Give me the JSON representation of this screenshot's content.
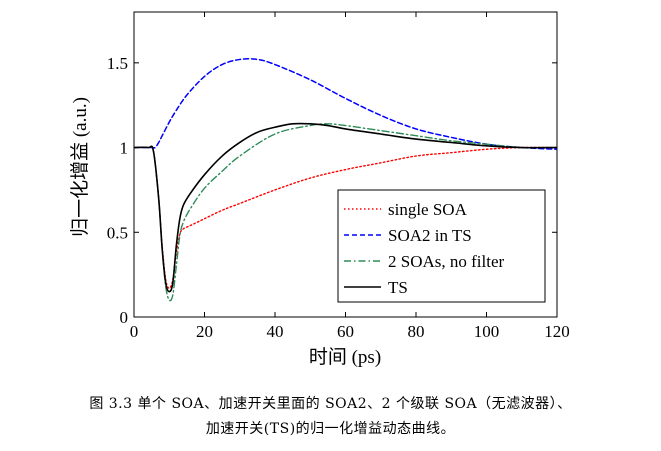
{
  "chart_data": {
    "type": "line",
    "xlabel": "时间 (ps)",
    "ylabel": "归一化增益 (a.u.)",
    "xlim": [
      0,
      120
    ],
    "ylim": [
      0,
      1.8
    ],
    "xticks": [
      "0",
      "20",
      "40",
      "60",
      "80",
      "100",
      "120"
    ],
    "yticks": [
      "0",
      "0.5",
      "1",
      "1.5"
    ],
    "grid": false,
    "legend_position": "bottom-right",
    "series": [
      {
        "name": "single SOA",
        "color": "#ff0000",
        "style": "dotted",
        "x": [
          0,
          4,
          5.5,
          7,
          8,
          9,
          10,
          11,
          12,
          13,
          14,
          16,
          20,
          25,
          30,
          40,
          50,
          60,
          70,
          80,
          90,
          100,
          110,
          120
        ],
        "y": [
          1.0,
          1.0,
          0.98,
          0.7,
          0.42,
          0.22,
          0.17,
          0.22,
          0.38,
          0.49,
          0.52,
          0.54,
          0.58,
          0.63,
          0.67,
          0.75,
          0.82,
          0.87,
          0.91,
          0.95,
          0.97,
          0.99,
          1.0,
          1.0
        ]
      },
      {
        "name": "SOA2 in TS",
        "color": "#0000ff",
        "style": "dashed",
        "x": [
          0,
          5,
          6,
          7,
          8,
          10,
          12,
          15,
          20,
          25,
          30,
          35,
          40,
          50,
          60,
          70,
          80,
          90,
          100,
          110,
          120
        ],
        "y": [
          1.0,
          1.0,
          1.0,
          1.03,
          1.07,
          1.15,
          1.22,
          1.31,
          1.42,
          1.49,
          1.52,
          1.52,
          1.49,
          1.4,
          1.29,
          1.19,
          1.11,
          1.06,
          1.02,
          1.0,
          0.99
        ]
      },
      {
        "name": "2 SOAs, no filter",
        "color": "#2e8b57",
        "style": "dashdot",
        "x": [
          0,
          4,
          5.5,
          7,
          8,
          9,
          10,
          11,
          12,
          13,
          14,
          16,
          20,
          25,
          30,
          40,
          50,
          55,
          60,
          70,
          80,
          90,
          100,
          110,
          120
        ],
        "y": [
          1.0,
          1.0,
          0.98,
          0.7,
          0.4,
          0.18,
          0.1,
          0.13,
          0.3,
          0.48,
          0.56,
          0.64,
          0.76,
          0.86,
          0.95,
          1.08,
          1.13,
          1.14,
          1.13,
          1.1,
          1.07,
          1.04,
          1.02,
          1.0,
          1.0
        ]
      },
      {
        "name": "TS",
        "color": "#000000",
        "style": "solid",
        "x": [
          0,
          4,
          5.5,
          7,
          8,
          9,
          10,
          11,
          12,
          13,
          14,
          16,
          20,
          25,
          30,
          35,
          40,
          45,
          50,
          55,
          60,
          70,
          80,
          90,
          100,
          110,
          120
        ],
        "y": [
          1.0,
          1.0,
          0.98,
          0.7,
          0.4,
          0.2,
          0.15,
          0.2,
          0.42,
          0.58,
          0.66,
          0.73,
          0.84,
          0.95,
          1.03,
          1.09,
          1.12,
          1.14,
          1.14,
          1.13,
          1.11,
          1.08,
          1.05,
          1.03,
          1.01,
          1.0,
          1.0
        ]
      }
    ]
  },
  "caption": {
    "line1": "图 3.3  单个 SOA、加速开关里面的 SOA2、2 个级联 SOA（无滤波器）、",
    "line2": "加速开关(TS)的归一化增益动态曲线。"
  }
}
